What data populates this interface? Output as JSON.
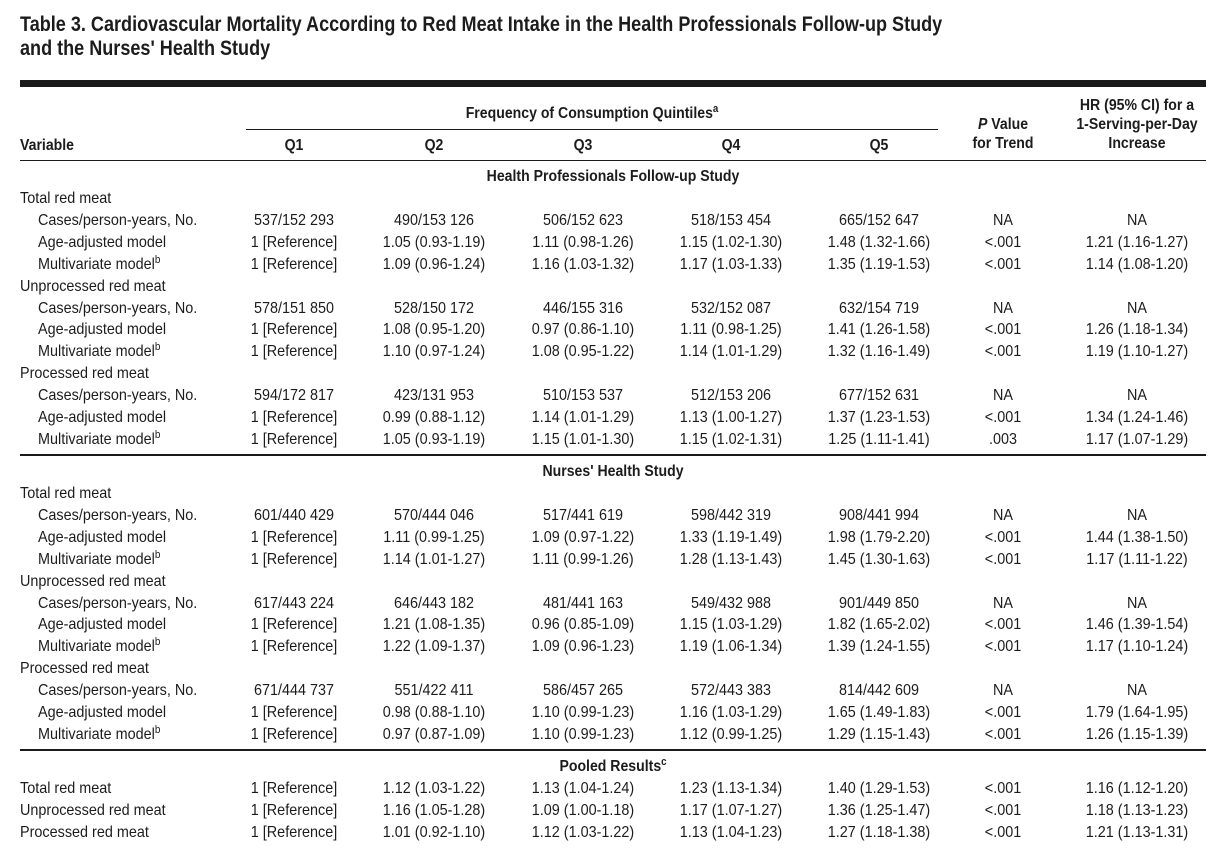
{
  "title_line1": "Table 3. Cardiovascular Mortality According to Red Meat Intake in the Health Professionals Follow-up Study",
  "title_line2": "and the Nurses' Health Study",
  "header": {
    "freq_label": "Frequency of Consumption Quintiles",
    "freq_sup": "a",
    "variable": "Variable",
    "quintiles": [
      "Q1",
      "Q2",
      "Q3",
      "Q4",
      "Q5"
    ],
    "ptrend_p": "P",
    "ptrend_1": " Value",
    "ptrend_2": "for Trend",
    "hr_1": "HR (95% CI) for a",
    "hr_2": "1-Serving-per-Day",
    "hr_3": "Increase"
  },
  "sections": [
    {
      "title": "Health Professionals Follow-up Study",
      "title_sup": "",
      "groups": [
        {
          "label": "Total red meat",
          "rows": [
            {
              "label": "Cases/person-years, No.",
              "sup": "",
              "values": [
                "537/152 293",
                "490/153 126",
                "506/152 623",
                "518/153 454",
                "665/152 647",
                "NA",
                "NA"
              ]
            },
            {
              "label": "Age-adjusted model",
              "sup": "",
              "values": [
                "1 [Reference]",
                "1.05 (0.93-1.19)",
                "1.11 (0.98-1.26)",
                "1.15 (1.02-1.30)",
                "1.48 (1.32-1.66)",
                "<.001",
                "1.21 (1.16-1.27)"
              ]
            },
            {
              "label": "Multivariate model",
              "sup": "b",
              "values": [
                "1 [Reference]",
                "1.09 (0.96-1.24)",
                "1.16 (1.03-1.32)",
                "1.17 (1.03-1.33)",
                "1.35 (1.19-1.53)",
                "<.001",
                "1.14 (1.08-1.20)"
              ]
            }
          ]
        },
        {
          "label": "Unprocessed red meat",
          "rows": [
            {
              "label": "Cases/person-years, No.",
              "sup": "",
              "values": [
                "578/151 850",
                "528/150 172",
                "446/155 316",
                "532/152 087",
                "632/154 719",
                "NA",
                "NA"
              ]
            },
            {
              "label": "Age-adjusted model",
              "sup": "",
              "values": [
                "1 [Reference]",
                "1.08 (0.95-1.20)",
                "0.97 (0.86-1.10)",
                "1.11 (0.98-1.25)",
                "1.41 (1.26-1.58)",
                "<.001",
                "1.26 (1.18-1.34)"
              ]
            },
            {
              "label": "Multivariate model",
              "sup": "b",
              "values": [
                "1 [Reference]",
                "1.10 (0.97-1.24)",
                "1.08 (0.95-1.22)",
                "1.14 (1.01-1.29)",
                "1.32 (1.16-1.49)",
                "<.001",
                "1.19 (1.10-1.27)"
              ]
            }
          ]
        },
        {
          "label": "Processed red meat",
          "rows": [
            {
              "label": "Cases/person-years, No.",
              "sup": "",
              "values": [
                "594/172 817",
                "423/131 953",
                "510/153 537",
                "512/153 206",
                "677/152 631",
                "NA",
                "NA"
              ]
            },
            {
              "label": "Age-adjusted model",
              "sup": "",
              "values": [
                "1 [Reference]",
                "0.99 (0.88-1.12)",
                "1.14 (1.01-1.29)",
                "1.13 (1.00-1.27)",
                "1.37 (1.23-1.53)",
                "<.001",
                "1.34 (1.24-1.46)"
              ]
            },
            {
              "label": "Multivariate model",
              "sup": "b",
              "values": [
                "1 [Reference]",
                "1.05 (0.93-1.19)",
                "1.15 (1.01-1.30)",
                "1.15 (1.02-1.31)",
                "1.25 (1.11-1.41)",
                ".003",
                "1.17 (1.07-1.29)"
              ]
            }
          ]
        }
      ]
    },
    {
      "title": "Nurses' Health Study",
      "title_sup": "",
      "groups": [
        {
          "label": "Total red meat",
          "rows": [
            {
              "label": "Cases/person-years, No.",
              "sup": "",
              "values": [
                "601/440 429",
                "570/444 046",
                "517/441 619",
                "598/442 319",
                "908/441 994",
                "NA",
                "NA"
              ]
            },
            {
              "label": "Age-adjusted model",
              "sup": "",
              "values": [
                "1 [Reference]",
                "1.11 (0.99-1.25)",
                "1.09 (0.97-1.22)",
                "1.33 (1.19-1.49)",
                "1.98 (1.79-2.20)",
                "<.001",
                "1.44 (1.38-1.50)"
              ]
            },
            {
              "label": "Multivariate model",
              "sup": "b",
              "values": [
                "1 [Reference]",
                "1.14 (1.01-1.27)",
                "1.11 (0.99-1.26)",
                "1.28 (1.13-1.43)",
                "1.45 (1.30-1.63)",
                "<.001",
                "1.17 (1.11-1.22)"
              ]
            }
          ]
        },
        {
          "label": "Unprocessed red meat",
          "rows": [
            {
              "label": "Cases/person-years, No.",
              "sup": "",
              "values": [
                "617/443 224",
                "646/443 182",
                "481/441 163",
                "549/432 988",
                "901/449 850",
                "NA",
                "NA"
              ]
            },
            {
              "label": "Age-adjusted model",
              "sup": "",
              "values": [
                "1 [Reference]",
                "1.21 (1.08-1.35)",
                "0.96 (0.85-1.09)",
                "1.15 (1.03-1.29)",
                "1.82 (1.65-2.02)",
                "<.001",
                "1.46 (1.39-1.54)"
              ]
            },
            {
              "label": "Multivariate model",
              "sup": "b",
              "values": [
                "1 [Reference]",
                "1.22 (1.09-1.37)",
                "1.09 (0.96-1.23)",
                "1.19 (1.06-1.34)",
                "1.39 (1.24-1.55)",
                "<.001",
                "1.17 (1.10-1.24)"
              ]
            }
          ]
        },
        {
          "label": "Processed red meat",
          "rows": [
            {
              "label": "Cases/person-years, No.",
              "sup": "",
              "values": [
                "671/444 737",
                "551/422 411",
                "586/457 265",
                "572/443 383",
                "814/442 609",
                "NA",
                "NA"
              ]
            },
            {
              "label": "Age-adjusted model",
              "sup": "",
              "values": [
                "1 [Reference]",
                "0.98 (0.88-1.10)",
                "1.10 (0.99-1.23)",
                "1.16 (1.03-1.29)",
                "1.65 (1.49-1.83)",
                "<.001",
                "1.79 (1.64-1.95)"
              ]
            },
            {
              "label": "Multivariate model",
              "sup": "b",
              "values": [
                "1 [Reference]",
                "0.97 (0.87-1.09)",
                "1.10 (0.99-1.23)",
                "1.12 (0.99-1.25)",
                "1.29 (1.15-1.43)",
                "<.001",
                "1.26 (1.15-1.39)"
              ]
            }
          ]
        }
      ]
    },
    {
      "title": "Pooled Results",
      "title_sup": "c",
      "groups": [
        {
          "label": "",
          "rows": [
            {
              "label": "Total red meat",
              "sup": "",
              "values": [
                "1 [Reference]",
                "1.12 (1.03-1.22)",
                "1.13 (1.04-1.24)",
                "1.23 (1.13-1.34)",
                "1.40 (1.29-1.53)",
                "<.001",
                "1.16 (1.12-1.20)"
              ]
            },
            {
              "label": "Unprocessed red meat",
              "sup": "",
              "values": [
                "1 [Reference]",
                "1.16 (1.05-1.28)",
                "1.09 (1.00-1.18)",
                "1.17 (1.07-1.27)",
                "1.36 (1.25-1.47)",
                "<.001",
                "1.18 (1.13-1.23)"
              ]
            },
            {
              "label": "Processed red meat",
              "sup": "",
              "values": [
                "1 [Reference]",
                "1.01 (0.92-1.10)",
                "1.12 (1.03-1.22)",
                "1.13 (1.04-1.23)",
                "1.27 (1.18-1.38)",
                "<.001",
                "1.21 (1.13-1.31)"
              ]
            }
          ]
        }
      ]
    }
  ]
}
